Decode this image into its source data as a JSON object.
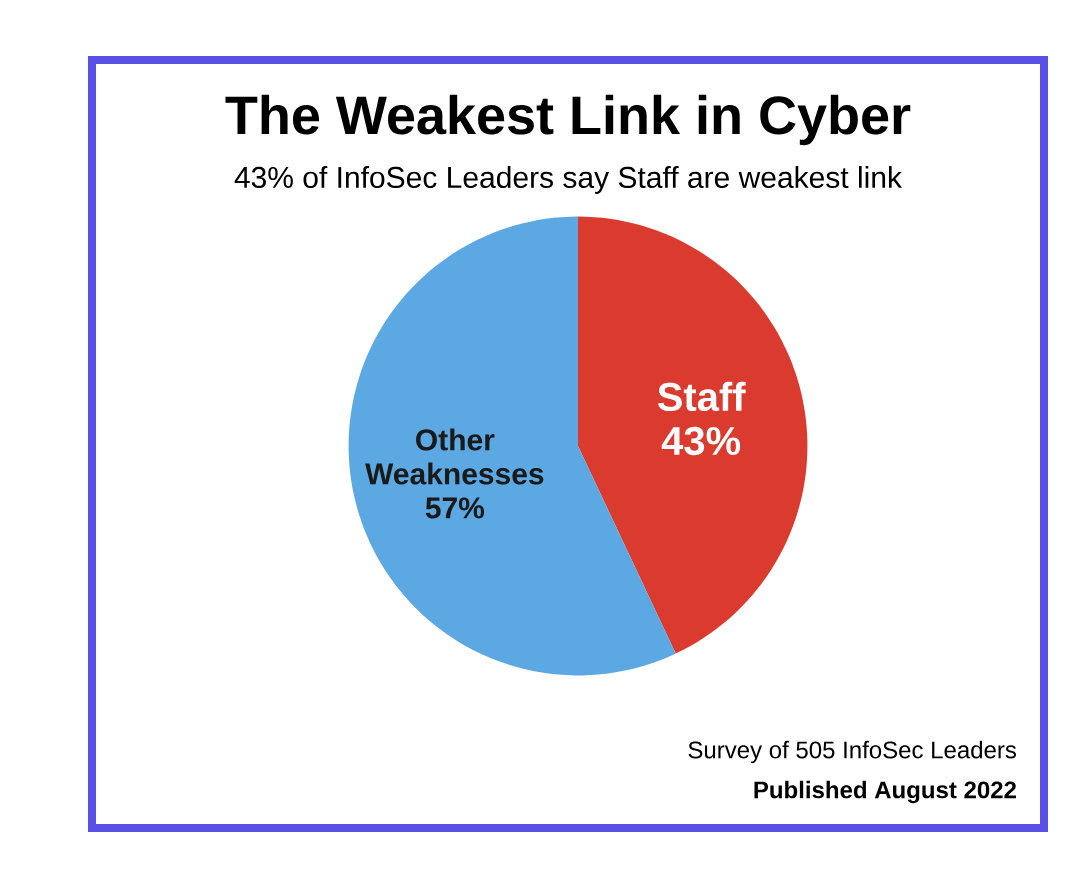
{
  "chart_data": {
    "type": "pie",
    "title": "The Weakest Link in Cyber",
    "subtitle": "43% of InfoSec Leaders say Staff are weakest link",
    "categories": [
      "Staff",
      "Other Weaknesses"
    ],
    "values": [
      43,
      57
    ],
    "value_labels": [
      "43%",
      "57%"
    ],
    "colors": [
      "#db3a2e",
      "#5ba8e3"
    ],
    "annotations": [
      "Survey of 505 InfoSec Leaders",
      "Published August 2022"
    ]
  }
}
